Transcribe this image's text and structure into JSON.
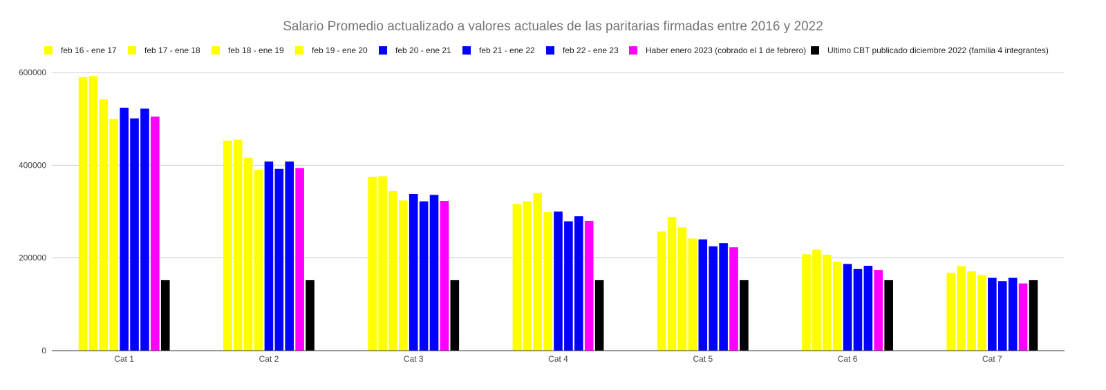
{
  "chart_data": {
    "type": "bar",
    "title": "Salario Promedio actualizado a valores actuales de las paritarias firmadas entre 2016 y 2022",
    "xlabel": "",
    "ylabel": "",
    "ylim": [
      0,
      600000
    ],
    "yticks": [
      "0",
      "200000",
      "400000",
      "600000"
    ],
    "grid": true,
    "legend_position": "top",
    "categories": [
      "Cat 1",
      "Cat 2",
      "Cat 3",
      "Cat 4",
      "Cat 5",
      "Cat 6",
      "Cat 7"
    ],
    "series": [
      {
        "name": "feb 16 - ene 17",
        "color": "#ffff00",
        "values": [
          590000,
          453000,
          375000,
          316000,
          257000,
          208000,
          168000
        ]
      },
      {
        "name": "feb 17 - ene 18",
        "color": "#ffff00",
        "values": [
          592000,
          455000,
          376000,
          322000,
          288000,
          218000,
          182000
        ]
      },
      {
        "name": "feb 18 - ene 19",
        "color": "#ffff00",
        "values": [
          542000,
          416000,
          344000,
          340000,
          266000,
          207000,
          171000
        ]
      },
      {
        "name": "feb 19 - ene 20",
        "color": "#ffff00",
        "values": [
          500000,
          390000,
          324000,
          299000,
          242000,
          192000,
          163000
        ]
      },
      {
        "name": "feb 20 - ene 21",
        "color": "#0000ff",
        "values": [
          524000,
          408000,
          338000,
          300000,
          240000,
          187000,
          157000
        ]
      },
      {
        "name": "feb 21 - ene 22",
        "color": "#0000ff",
        "values": [
          501000,
          392000,
          322000,
          279000,
          225000,
          176000,
          150000
        ]
      },
      {
        "name": "feb 22 - ene 23",
        "color": "#0000ff",
        "values": [
          522000,
          408000,
          336000,
          290000,
          232000,
          183000,
          157000
        ]
      },
      {
        "name": "Haber enero 2023 (cobrado el 1 de febrero)",
        "color": "#ff00ff",
        "values": [
          505000,
          394000,
          323000,
          280000,
          223000,
          174000,
          145000
        ]
      },
      {
        "name": "Ultimo CBT publicado diciembre 2022 (familia 4 integrantes)",
        "color": "#000000",
        "values": [
          152000,
          152000,
          152000,
          152000,
          152000,
          152000,
          152000
        ]
      }
    ]
  }
}
